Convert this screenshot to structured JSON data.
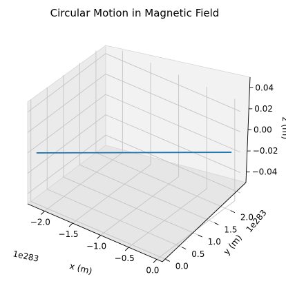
{
  "chart_data": {
    "type": "line",
    "projection": "3d",
    "title": "Circular Motion in Magnetic Field",
    "xlabel": "x (m)",
    "ylabel": "y (m)",
    "zlabel": "z (m)",
    "x_offset_label": "1e283",
    "y_offset_label": "1e283",
    "x_ticks": [
      "−2.0",
      "−1.5",
      "−1.0",
      "−0.5",
      "0.0"
    ],
    "y_ticks": [
      "0.0",
      "0.5",
      "1.0",
      "1.5",
      "2.0"
    ],
    "z_ticks": [
      "−0.04",
      "−0.02",
      "0.00",
      "0.02",
      "0.04"
    ],
    "xlim": [
      -2.3,
      0.1
    ],
    "ylim": [
      -0.1,
      2.3
    ],
    "zlim": [
      -0.05,
      0.05
    ],
    "grid": true,
    "series": [
      {
        "color": "#1f77b4",
        "x": [
          -2.2,
          0.0
        ],
        "y": [
          0.0,
          2.2
        ],
        "z": [
          0.0,
          0.0
        ]
      }
    ]
  }
}
